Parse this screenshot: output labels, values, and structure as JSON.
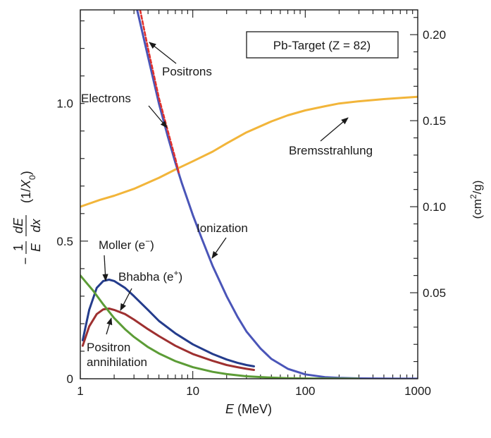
{
  "chart_data": {
    "type": "line",
    "xscale": "log",
    "xlim": [
      1,
      1000
    ],
    "ylim": [
      0,
      1.34
    ],
    "y2lim": [
      0,
      0.2144
    ],
    "xlabel": {
      "var": "E",
      "unit": "(MeV)"
    },
    "ylabel": {
      "minus": "−",
      "frac1_num": "1",
      "frac1_den": "E",
      "frac2_num": "dE",
      "frac2_den": "dx",
      "unit_pre": "(1/",
      "unit_var": "X",
      "unit_sub": "0",
      "unit_post": ")"
    },
    "y2label": {
      "pre": "(cm",
      "sup": "2",
      "post": "/g)"
    },
    "x_ticks": [
      {
        "value": 1,
        "label": "1"
      },
      {
        "value": 10,
        "label": "10"
      },
      {
        "value": 100,
        "label": "100"
      },
      {
        "value": 1000,
        "label": "1000"
      }
    ],
    "y_ticks": [
      {
        "value": 0,
        "label": "0"
      },
      {
        "value": 0.5,
        "label": "0.5"
      },
      {
        "value": 1.0,
        "label": "1.0"
      }
    ],
    "y2_ticks": [
      {
        "value": 0.05,
        "label": "0.05"
      },
      {
        "value": 0.1,
        "label": "0.10"
      },
      {
        "value": 0.15,
        "label": "0.15"
      },
      {
        "value": 0.2,
        "label": "0.20"
      }
    ],
    "box_label": "Pb-Target (Z = 82)",
    "series": [
      {
        "key": "brems",
        "color": "#f2b53a",
        "dash": "",
        "x": [
          1,
          1.5,
          2,
          3,
          5,
          7,
          10,
          15,
          20,
          30,
          50,
          70,
          100,
          150,
          200,
          300,
          500,
          700,
          1000
        ],
        "y": [
          0.625,
          0.65,
          0.665,
          0.69,
          0.73,
          0.76,
          0.79,
          0.825,
          0.855,
          0.895,
          0.935,
          0.957,
          0.975,
          0.99,
          1.0,
          1.008,
          1.016,
          1.02,
          1.024
        ]
      },
      {
        "key": "electrons",
        "color": "#4a55b8",
        "dash": "",
        "x": [
          3.2,
          4,
          5,
          6,
          7,
          8,
          10,
          12,
          15,
          20,
          25,
          30,
          40,
          50,
          70,
          100,
          150,
          200,
          300,
          500,
          700,
          1000
        ],
        "y": [
          1.34,
          1.17,
          1.0,
          0.88,
          0.785,
          0.71,
          0.595,
          0.51,
          0.41,
          0.3,
          0.225,
          0.172,
          0.11,
          0.072,
          0.036,
          0.016,
          0.006,
          0.003,
          0.0012,
          0.0005,
          0.0003,
          0.0002
        ]
      },
      {
        "key": "positrons",
        "color": "#e0302c",
        "dash": "5 3",
        "x": [
          3.4,
          4,
          5,
          6,
          7,
          7.5
        ],
        "y": [
          1.34,
          1.2,
          1.02,
          0.9,
          0.8,
          0.75
        ]
      },
      {
        "key": "moller",
        "color": "#243c8c",
        "dash": "",
        "x": [
          1.05,
          1.2,
          1.4,
          1.6,
          1.8,
          2,
          2.5,
          3,
          4,
          5,
          7,
          10,
          15,
          20,
          25,
          30,
          35
        ],
        "y": [
          0.14,
          0.25,
          0.33,
          0.355,
          0.36,
          0.355,
          0.33,
          0.3,
          0.25,
          0.21,
          0.165,
          0.125,
          0.09,
          0.07,
          0.058,
          0.05,
          0.045
        ]
      },
      {
        "key": "bhabha",
        "color": "#9e3030",
        "dash": "",
        "x": [
          1.05,
          1.2,
          1.4,
          1.6,
          1.8,
          2,
          2.5,
          3,
          4,
          5,
          7,
          10,
          15,
          20,
          25,
          30,
          35
        ],
        "y": [
          0.12,
          0.19,
          0.235,
          0.252,
          0.255,
          0.25,
          0.235,
          0.215,
          0.18,
          0.155,
          0.12,
          0.09,
          0.065,
          0.05,
          0.042,
          0.036,
          0.032
        ]
      },
      {
        "key": "annihilation",
        "color": "#5c9c36",
        "dash": "",
        "x": [
          1,
          1.3,
          1.6,
          2,
          2.5,
          3,
          4,
          5,
          7,
          10,
          15,
          20,
          30,
          50,
          70,
          100,
          150,
          200,
          300
        ],
        "y": [
          0.375,
          0.32,
          0.27,
          0.22,
          0.18,
          0.152,
          0.115,
          0.092,
          0.064,
          0.042,
          0.025,
          0.017,
          0.009,
          0.004,
          0.002,
          0.001,
          0.0005,
          0.0003,
          0.0001
        ]
      }
    ],
    "annotations": [
      {
        "key": "positrons",
        "text": "Positrons"
      },
      {
        "key": "electrons",
        "text": "Electrons"
      },
      {
        "key": "brems",
        "text": "Bremsstrahlung"
      },
      {
        "key": "ionization",
        "text": "Ionization"
      },
      {
        "key": "moller",
        "text": "Moller (e",
        "sup": "−",
        "after": ")"
      },
      {
        "key": "bhabha",
        "text": "Bhabha (e",
        "sup": "+",
        "after": ")"
      },
      {
        "key": "annihilation",
        "text": "Positron",
        "line2": "annihilation"
      }
    ]
  }
}
